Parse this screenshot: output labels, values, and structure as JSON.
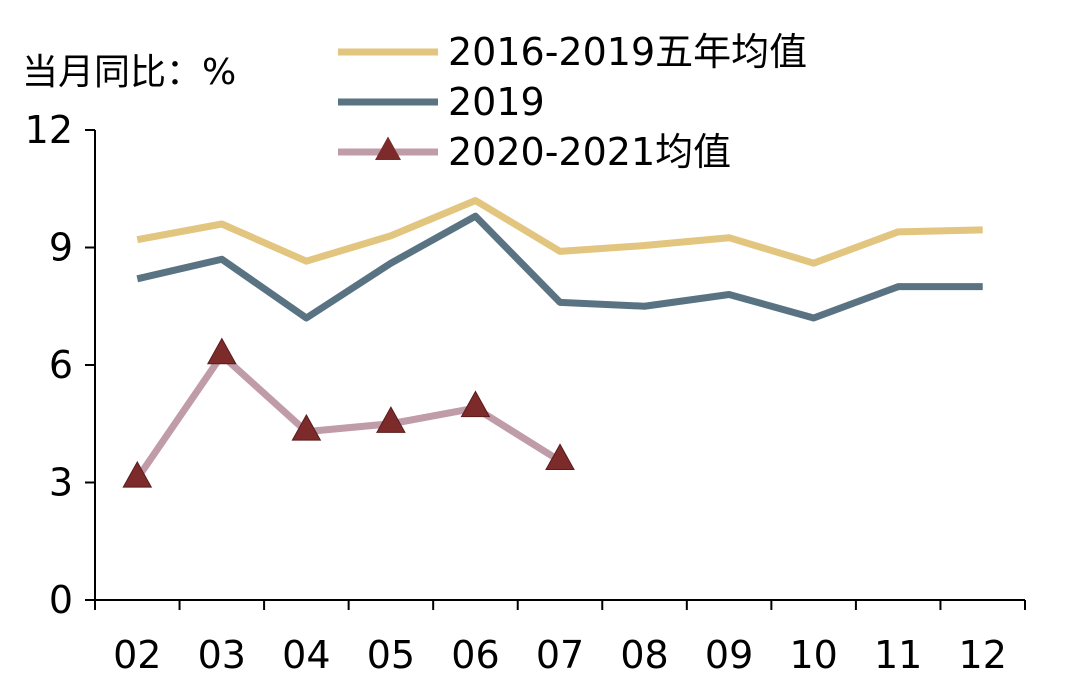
{
  "chart_data": {
    "type": "line",
    "ylabel": "当月同比：%",
    "ylim": [
      0,
      12
    ],
    "yticks": [
      0,
      3,
      6,
      9,
      12
    ],
    "categories": [
      "02",
      "03",
      "04",
      "05",
      "06",
      "07",
      "08",
      "09",
      "10",
      "11",
      "12"
    ],
    "legend_position": "top",
    "grid": false,
    "series": [
      {
        "name": "2016-2019五年均值",
        "color": "#E2C57F",
        "marker": "none",
        "values": [
          9.2,
          9.6,
          8.65,
          9.3,
          10.2,
          8.9,
          9.05,
          9.25,
          8.6,
          9.4,
          9.45
        ]
      },
      {
        "name": "2019",
        "color": "#5A7383",
        "marker": "none",
        "values": [
          8.2,
          8.7,
          7.2,
          8.6,
          9.8,
          7.6,
          7.5,
          7.8,
          7.2,
          8.0,
          8.0
        ]
      },
      {
        "name": "2020-2021均值",
        "color": "#C09CA8",
        "marker": "triangle",
        "marker_color": "#7C2A2A",
        "values": [
          3.1,
          6.25,
          4.3,
          4.5,
          4.9,
          3.55,
          null,
          null,
          null,
          null,
          null
        ]
      }
    ]
  }
}
